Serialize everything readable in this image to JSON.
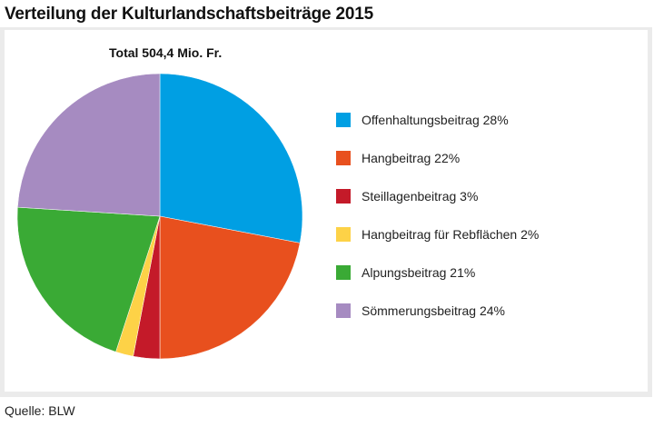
{
  "title": "Verteilung der Kulturlandschaftsbeiträge 2015",
  "source": "Quelle: BLW",
  "chart_data": {
    "type": "pie",
    "title": "Total 504,4 Mio. Fr.",
    "start": "top, clockwise",
    "legend_position": "right",
    "slices": [
      {
        "label": "Offenhaltungsbeitrag",
        "value": 28,
        "display": "Offenhaltungsbeitrag  28%",
        "color": "#009fe3"
      },
      {
        "label": "Hangbeitrag",
        "value": 22,
        "display": "Hangbeitrag  22%",
        "color": "#e8501e"
      },
      {
        "label": "Steillagenbeitrag",
        "value": 3,
        "display": "Steillagenbeitrag  3%",
        "color": "#c41a29"
      },
      {
        "label": "Hangbeitrag für Rebflächen",
        "value": 2,
        "display": "Hangbeitrag für Rebflächen  2%",
        "color": "#fdd247"
      },
      {
        "label": "Alpungsbeitrag",
        "value": 21,
        "display": "Alpungsbeitrag  21%",
        "color": "#3aaa35"
      },
      {
        "label": "Sömmerungsbeitrag",
        "value": 24,
        "display": "Sömmerungsbeitrag  24%",
        "color": "#a68bc1"
      }
    ]
  }
}
